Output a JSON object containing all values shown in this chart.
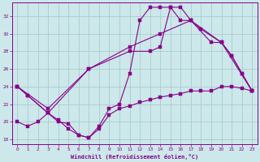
{
  "xlabel": "Windchill (Refroidissement éolien,°C)",
  "bg_color": "#cce8ea",
  "grid_color": "#aacccc",
  "line_color": "#880088",
  "xlim": [
    -0.5,
    23.5
  ],
  "ylim": [
    17.5,
    33.5
  ],
  "yticks": [
    18,
    20,
    22,
    24,
    26,
    28,
    30,
    32
  ],
  "xticks": [
    0,
    1,
    2,
    3,
    4,
    5,
    6,
    7,
    8,
    9,
    10,
    11,
    12,
    13,
    14,
    15,
    16,
    17,
    18,
    19,
    20,
    21,
    22,
    23
  ],
  "curve1_x": [
    0,
    1,
    3,
    4,
    5,
    6,
    7,
    8,
    9,
    10,
    11,
    12,
    13,
    14,
    15,
    16,
    17,
    18,
    20,
    21,
    22,
    23
  ],
  "curve1_y": [
    24.0,
    23.0,
    21.0,
    20.2,
    19.2,
    18.5,
    18.2,
    19.5,
    21.5,
    22.0,
    25.5,
    31.5,
    33.0,
    33.0,
    33.0,
    33.0,
    31.5,
    30.5,
    29.0,
    27.5,
    25.5,
    23.5
  ],
  "curve2_x": [
    0,
    1,
    3,
    7,
    11,
    13,
    14,
    15,
    16,
    17,
    19,
    20,
    21,
    22,
    23
  ],
  "curve2_y": [
    24.0,
    23.0,
    21.0,
    26.0,
    28.0,
    28.0,
    28.5,
    33.0,
    31.5,
    31.5,
    29.0,
    29.0,
    27.5,
    25.5,
    23.5
  ],
  "curve3_x": [
    0,
    3,
    7,
    11,
    14,
    17,
    20,
    23
  ],
  "curve3_y": [
    24.0,
    21.5,
    26.0,
    28.5,
    30.0,
    31.5,
    29.0,
    23.5
  ],
  "curve4_x": [
    0,
    1,
    2,
    3,
    4,
    5,
    6,
    7,
    8,
    9,
    10,
    11,
    12,
    13,
    14,
    15,
    16,
    17,
    18,
    19,
    20,
    21,
    22,
    23
  ],
  "curve4_y": [
    20.0,
    19.5,
    20.0,
    21.0,
    20.0,
    19.8,
    18.5,
    18.2,
    19.2,
    20.8,
    21.5,
    21.8,
    22.2,
    22.5,
    22.8,
    23.0,
    23.2,
    23.5,
    23.5,
    23.5,
    24.0,
    24.0,
    23.8,
    23.5
  ]
}
